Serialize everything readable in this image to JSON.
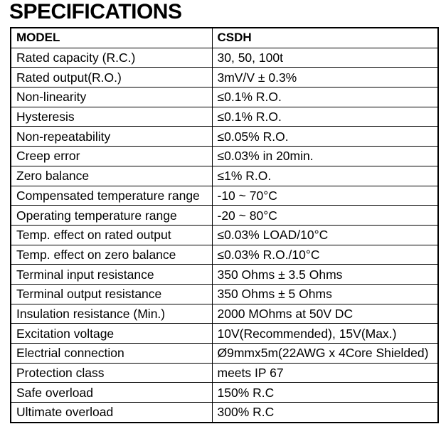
{
  "title": "SPECIFICATIONS",
  "table": {
    "header": [
      "MODEL",
      "CSDH"
    ],
    "rows": [
      [
        "Rated capacity (R.C.)",
        "30, 50, 100t"
      ],
      [
        "Rated output(R.O.)",
        "3mV/V ± 0.3%"
      ],
      [
        "Non-linearity",
        "≤0.1% R.O."
      ],
      [
        "Hysteresis",
        "≤0.1% R.O."
      ],
      [
        "Non-repeatability",
        "≤0.05% R.O."
      ],
      [
        "Creep error",
        "≤0.03% in 20min."
      ],
      [
        "Zero balance",
        "≤1% R.O."
      ],
      [
        "Compensated temperature range",
        "-10 ~ 70°C"
      ],
      [
        "Operating temperature range",
        "-20 ~ 80°C"
      ],
      [
        "Temp. effect on rated output",
        "≤0.03% LOAD/10°C"
      ],
      [
        "Temp. effect on zero balance",
        "≤0.03% R.O./10°C"
      ],
      [
        "Terminal input resistance",
        "350 Ohms ± 3.5 Ohms"
      ],
      [
        "Terminal output resistance",
        "350 Ohms ± 5 Ohms"
      ],
      [
        "Insulation resistance (Min.)",
        "2000 MOhms at 50V DC"
      ],
      [
        "Excitation voltage",
        "10V(Recommended), 15V(Max.)"
      ],
      [
        "Electrial connection",
        "Ø9mmx5m(22AWG x 4Core Shielded)"
      ],
      [
        "Protection class",
        "meets IP 67"
      ],
      [
        "Safe overload",
        "150% R.C"
      ],
      [
        "Ultimate overload",
        "300% R.C"
      ]
    ]
  }
}
